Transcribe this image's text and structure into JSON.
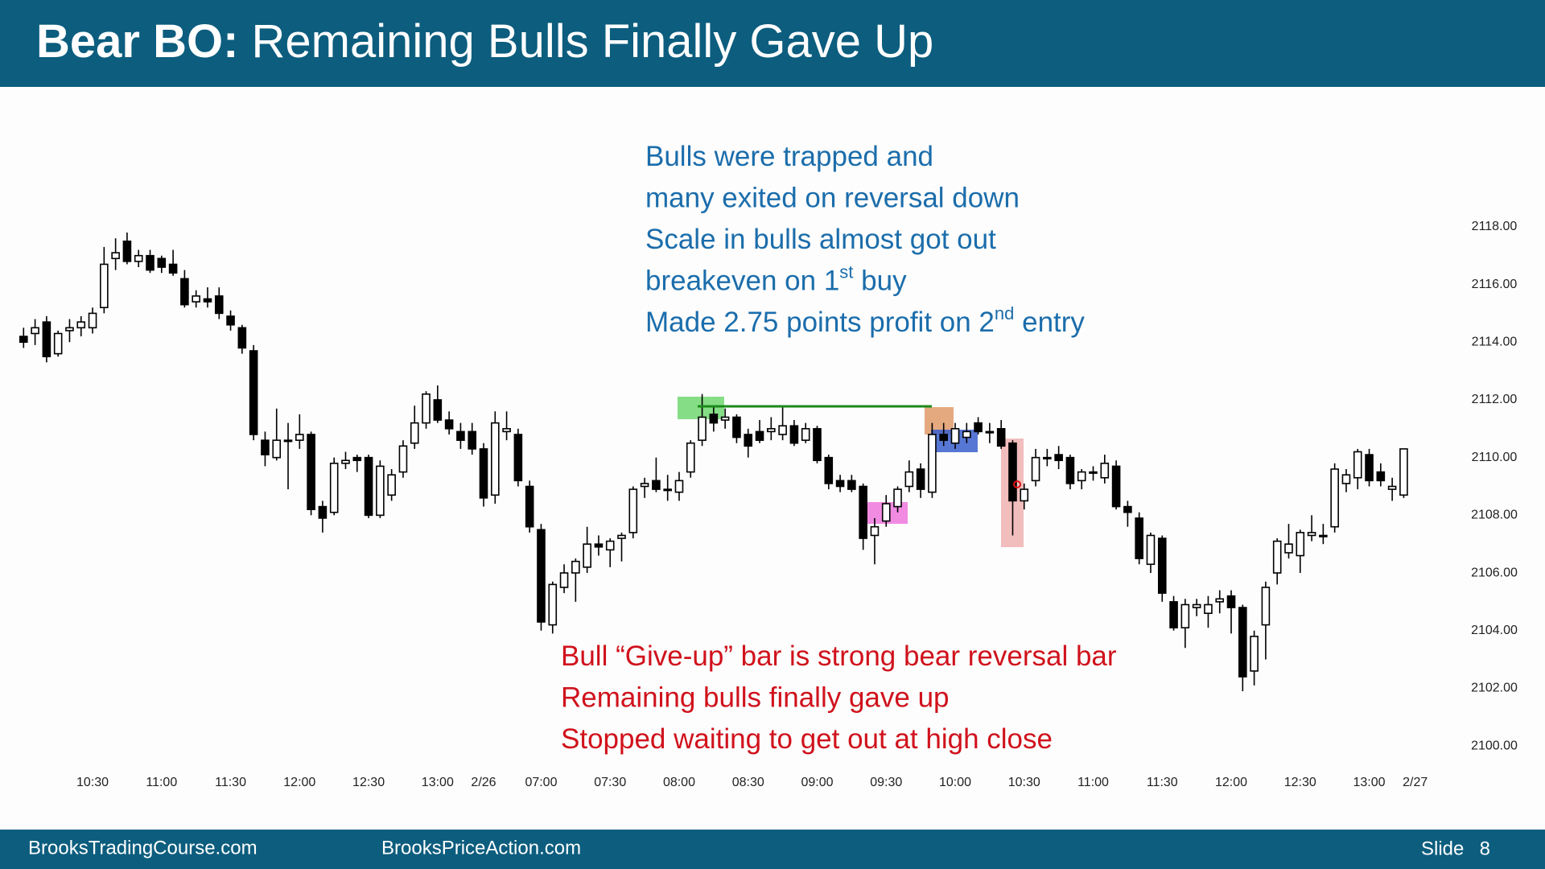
{
  "header": {
    "title_bold": "Bear BO:",
    "title_rest": " Remaining Bulls Finally Gave Up"
  },
  "footer": {
    "left": "BrooksTradingCourse.com",
    "middle": "BrooksPriceAction.com",
    "slide_label": "Slide",
    "slide_number": "8"
  },
  "chart_data": {
    "type": "candlestick",
    "up_color": "#ffffff",
    "down_color": "#000000",
    "xlim": [
      -1,
      122
    ],
    "ylim": [
      2099,
      2119
    ],
    "yticks": [
      {
        "value": 2100,
        "label": "2100.00"
      },
      {
        "value": 2102,
        "label": "2102.00"
      },
      {
        "value": 2104,
        "label": "2104.00"
      },
      {
        "value": 2106,
        "label": "2106.00"
      },
      {
        "value": 2108,
        "label": "2108.00"
      },
      {
        "value": 2110,
        "label": "2110.00"
      },
      {
        "value": 2112,
        "label": "2112.00"
      },
      {
        "value": 2114,
        "label": "2114.00"
      },
      {
        "value": 2116,
        "label": "2116.00"
      },
      {
        "value": 2118,
        "label": "2118.00"
      }
    ],
    "xticks": [
      {
        "value": 6,
        "label": "10:30"
      },
      {
        "value": 12,
        "label": "11:00"
      },
      {
        "value": 18,
        "label": "11:30"
      },
      {
        "value": 24,
        "label": "12:00"
      },
      {
        "value": 30,
        "label": "12:30"
      },
      {
        "value": 36,
        "label": "13:00"
      },
      {
        "value": 40,
        "label": "2/26"
      },
      {
        "value": 45,
        "label": "07:00"
      },
      {
        "value": 51,
        "label": "07:30"
      },
      {
        "value": 57,
        "label": "08:00"
      },
      {
        "value": 63,
        "label": "08:30"
      },
      {
        "value": 69,
        "label": "09:00"
      },
      {
        "value": 75,
        "label": "09:30"
      },
      {
        "value": 81,
        "label": "10:00"
      },
      {
        "value": 87,
        "label": "10:30"
      },
      {
        "value": 93,
        "label": "11:00"
      },
      {
        "value": 99,
        "label": "11:30"
      },
      {
        "value": 105,
        "label": "12:00"
      },
      {
        "value": 111,
        "label": "12:30"
      },
      {
        "value": 117,
        "label": "13:00"
      },
      {
        "value": 121,
        "label": "2/27"
      }
    ],
    "candles": [
      [
        2114.2,
        2114.5,
        2113.8,
        2114.0
      ],
      [
        2114.3,
        2114.8,
        2113.9,
        2114.5
      ],
      [
        2114.7,
        2114.9,
        2113.3,
        2113.5
      ],
      [
        2113.6,
        2114.4,
        2113.5,
        2114.3
      ],
      [
        2114.4,
        2114.8,
        2114.0,
        2114.5
      ],
      [
        2114.5,
        2114.9,
        2114.2,
        2114.7
      ],
      [
        2114.5,
        2115.2,
        2114.3,
        2115.0
      ],
      [
        2115.2,
        2117.3,
        2115.0,
        2116.7
      ],
      [
        2116.9,
        2117.6,
        2116.5,
        2117.1
      ],
      [
        2117.5,
        2117.8,
        2116.7,
        2116.8
      ],
      [
        2116.8,
        2117.2,
        2116.6,
        2117.0
      ],
      [
        2117.0,
        2117.2,
        2116.4,
        2116.5
      ],
      [
        2116.9,
        2117.0,
        2116.4,
        2116.6
      ],
      [
        2116.7,
        2117.2,
        2116.3,
        2116.4
      ],
      [
        2116.2,
        2116.5,
        2115.2,
        2115.3
      ],
      [
        2115.4,
        2115.8,
        2115.2,
        2115.6
      ],
      [
        2115.5,
        2115.9,
        2115.2,
        2115.4
      ],
      [
        2115.6,
        2115.9,
        2114.8,
        2115.0
      ],
      [
        2114.9,
        2115.1,
        2114.4,
        2114.6
      ],
      [
        2114.5,
        2114.6,
        2113.6,
        2113.8
      ],
      [
        2113.7,
        2113.9,
        2110.6,
        2110.8
      ],
      [
        2110.6,
        2110.9,
        2109.7,
        2110.1
      ],
      [
        2110.0,
        2111.7,
        2109.9,
        2110.6
      ],
      [
        2110.6,
        2111.2,
        2108.9,
        2110.6
      ],
      [
        2110.6,
        2111.5,
        2110.3,
        2110.8
      ],
      [
        2110.8,
        2110.9,
        2108.0,
        2108.2
      ],
      [
        2108.3,
        2108.5,
        2107.4,
        2107.9
      ],
      [
        2108.1,
        2110.0,
        2108.0,
        2109.8
      ],
      [
        2109.8,
        2110.2,
        2109.6,
        2109.9
      ],
      [
        2110.0,
        2110.1,
        2109.5,
        2109.9
      ],
      [
        2110.0,
        2110.1,
        2107.9,
        2108.0
      ],
      [
        2108.0,
        2109.9,
        2107.9,
        2109.7
      ],
      [
        2108.7,
        2109.6,
        2108.5,
        2109.4
      ],
      [
        2109.5,
        2110.6,
        2109.3,
        2110.4
      ],
      [
        2110.5,
        2111.8,
        2110.3,
        2111.2
      ],
      [
        2111.2,
        2112.3,
        2111.0,
        2112.2
      ],
      [
        2112.0,
        2112.5,
        2111.2,
        2111.3
      ],
      [
        2111.3,
        2111.6,
        2110.8,
        2111.0
      ],
      [
        2110.9,
        2111.2,
        2110.3,
        2110.6
      ],
      [
        2110.9,
        2111.2,
        2110.1,
        2110.3
      ],
      [
        2110.3,
        2110.5,
        2108.3,
        2108.6
      ],
      [
        2108.7,
        2111.6,
        2108.4,
        2111.2
      ],
      [
        2110.9,
        2111.6,
        2110.6,
        2111.0
      ],
      [
        2110.8,
        2111.0,
        2109.0,
        2109.2
      ],
      [
        2109.0,
        2109.2,
        2107.4,
        2107.6
      ],
      [
        2107.5,
        2107.7,
        2104.0,
        2104.3
      ],
      [
        2104.2,
        2105.7,
        2103.9,
        2105.6
      ],
      [
        2105.5,
        2106.3,
        2105.3,
        2106.0
      ],
      [
        2106.0,
        2106.5,
        2105.0,
        2106.4
      ],
      [
        2106.2,
        2107.6,
        2106.0,
        2107.0
      ],
      [
        2107.0,
        2107.3,
        2106.6,
        2106.9
      ],
      [
        2106.8,
        2107.2,
        2106.2,
        2107.1
      ],
      [
        2107.2,
        2107.4,
        2106.4,
        2107.3
      ],
      [
        2107.4,
        2109.0,
        2107.2,
        2108.9
      ],
      [
        2109.0,
        2109.3,
        2108.6,
        2109.1
      ],
      [
        2109.2,
        2110.0,
        2108.8,
        2108.9
      ],
      [
        2108.9,
        2109.4,
        2108.5,
        2108.9
      ],
      [
        2108.8,
        2109.5,
        2108.5,
        2109.2
      ],
      [
        2109.5,
        2110.6,
        2109.3,
        2110.5
      ],
      [
        2110.6,
        2112.2,
        2110.4,
        2111.4
      ],
      [
        2111.5,
        2111.8,
        2110.9,
        2111.2
      ],
      [
        2111.3,
        2111.7,
        2111.0,
        2111.4
      ],
      [
        2111.4,
        2111.5,
        2110.5,
        2110.7
      ],
      [
        2110.8,
        2111.0,
        2110.0,
        2110.4
      ],
      [
        2110.9,
        2111.3,
        2110.5,
        2110.6
      ],
      [
        2110.9,
        2111.4,
        2110.6,
        2111.0
      ],
      [
        2110.8,
        2111.8,
        2110.6,
        2111.1
      ],
      [
        2111.1,
        2111.3,
        2110.4,
        2110.5
      ],
      [
        2110.6,
        2111.2,
        2110.5,
        2111.0
      ],
      [
        2111.0,
        2111.1,
        2109.8,
        2109.9
      ],
      [
        2110.0,
        2110.1,
        2108.9,
        2109.1
      ],
      [
        2109.2,
        2109.4,
        2108.8,
        2109.0
      ],
      [
        2109.2,
        2109.4,
        2108.8,
        2108.9
      ],
      [
        2109.0,
        2109.1,
        2106.8,
        2107.2
      ],
      [
        2107.3,
        2107.9,
        2106.3,
        2107.6
      ],
      [
        2107.8,
        2108.7,
        2107.6,
        2108.4
      ],
      [
        2108.3,
        2109.0,
        2108.1,
        2108.9
      ],
      [
        2109.0,
        2109.9,
        2108.8,
        2109.5
      ],
      [
        2109.6,
        2109.8,
        2108.6,
        2108.9
      ],
      [
        2108.8,
        2111.2,
        2108.6,
        2110.8
      ],
      [
        2110.8,
        2111.2,
        2110.4,
        2110.6
      ],
      [
        2110.5,
        2111.2,
        2110.3,
        2111.0
      ],
      [
        2110.7,
        2111.2,
        2110.5,
        2110.9
      ],
      [
        2111.2,
        2111.4,
        2110.8,
        2110.9
      ],
      [
        2110.9,
        2111.2,
        2110.5,
        2110.9
      ],
      [
        2111.0,
        2111.3,
        2110.3,
        2110.4
      ],
      [
        2110.5,
        2110.6,
        2107.3,
        2108.5
      ],
      [
        2108.5,
        2109.1,
        2108.2,
        2108.9
      ],
      [
        2109.2,
        2110.3,
        2109.0,
        2110.0
      ],
      [
        2110.0,
        2110.3,
        2109.7,
        2110.0
      ],
      [
        2110.1,
        2110.4,
        2109.6,
        2109.9
      ],
      [
        2110.0,
        2110.1,
        2108.9,
        2109.1
      ],
      [
        2109.2,
        2109.6,
        2108.9,
        2109.5
      ],
      [
        2109.5,
        2109.7,
        2109.2,
        2109.5
      ],
      [
        2109.3,
        2110.1,
        2109.1,
        2109.8
      ],
      [
        2109.7,
        2109.9,
        2108.2,
        2108.3
      ],
      [
        2108.3,
        2108.5,
        2107.6,
        2108.1
      ],
      [
        2107.9,
        2108.1,
        2106.3,
        2106.5
      ],
      [
        2106.3,
        2107.4,
        2106.0,
        2107.3
      ],
      [
        2107.2,
        2107.3,
        2105.0,
        2105.3
      ],
      [
        2105.0,
        2105.2,
        2104.0,
        2104.1
      ],
      [
        2104.1,
        2105.1,
        2103.4,
        2104.9
      ],
      [
        2104.8,
        2105.1,
        2104.5,
        2104.9
      ],
      [
        2104.6,
        2105.2,
        2104.1,
        2104.9
      ],
      [
        2105.0,
        2105.4,
        2104.6,
        2105.1
      ],
      [
        2105.2,
        2105.4,
        2103.9,
        2104.8
      ],
      [
        2104.8,
        2104.9,
        2101.9,
        2102.4
      ],
      [
        2102.6,
        2104.0,
        2102.1,
        2103.8
      ],
      [
        2104.2,
        2105.7,
        2103.0,
        2105.5
      ],
      [
        2106.0,
        2107.2,
        2105.6,
        2107.1
      ],
      [
        2106.7,
        2107.7,
        2106.5,
        2107.0
      ],
      [
        2106.6,
        2107.5,
        2106.0,
        2107.4
      ],
      [
        2107.3,
        2108.0,
        2107.1,
        2107.4
      ],
      [
        2107.3,
        2107.7,
        2107.0,
        2107.3
      ],
      [
        2107.6,
        2109.8,
        2107.4,
        2109.6
      ],
      [
        2109.1,
        2109.6,
        2108.8,
        2109.4
      ],
      [
        2109.3,
        2110.3,
        2108.9,
        2110.2
      ],
      [
        2110.1,
        2110.3,
        2109.0,
        2109.2
      ],
      [
        2109.5,
        2109.8,
        2109.0,
        2109.2
      ],
      [
        2108.9,
        2109.3,
        2108.5,
        2109.0
      ],
      [
        2108.7,
        2110.3,
        2108.6,
        2110.3
      ]
    ],
    "annotations": [
      {
        "color": "#1b6dab",
        "lines": [
          {
            "text": "Bulls were trapped and"
          },
          {
            "text": "many exited on reversal down"
          },
          {
            "text": "Scale in bulls almost got out"
          },
          {
            "text": "breakeven on 1",
            "sup": "st",
            "after": " buy"
          },
          {
            "text": "Made 2.75 points profit on 2",
            "sup": "nd",
            "after": " entry"
          }
        ]
      },
      {
        "color": "#d0121c",
        "lines": [
          {
            "text": "Bull “Give-up” bar is strong bear reversal bar"
          },
          {
            "text": "Remaining bulls finally gave up"
          },
          {
            "text": "Stopped waiting to get out at high close"
          }
        ]
      }
    ]
  }
}
